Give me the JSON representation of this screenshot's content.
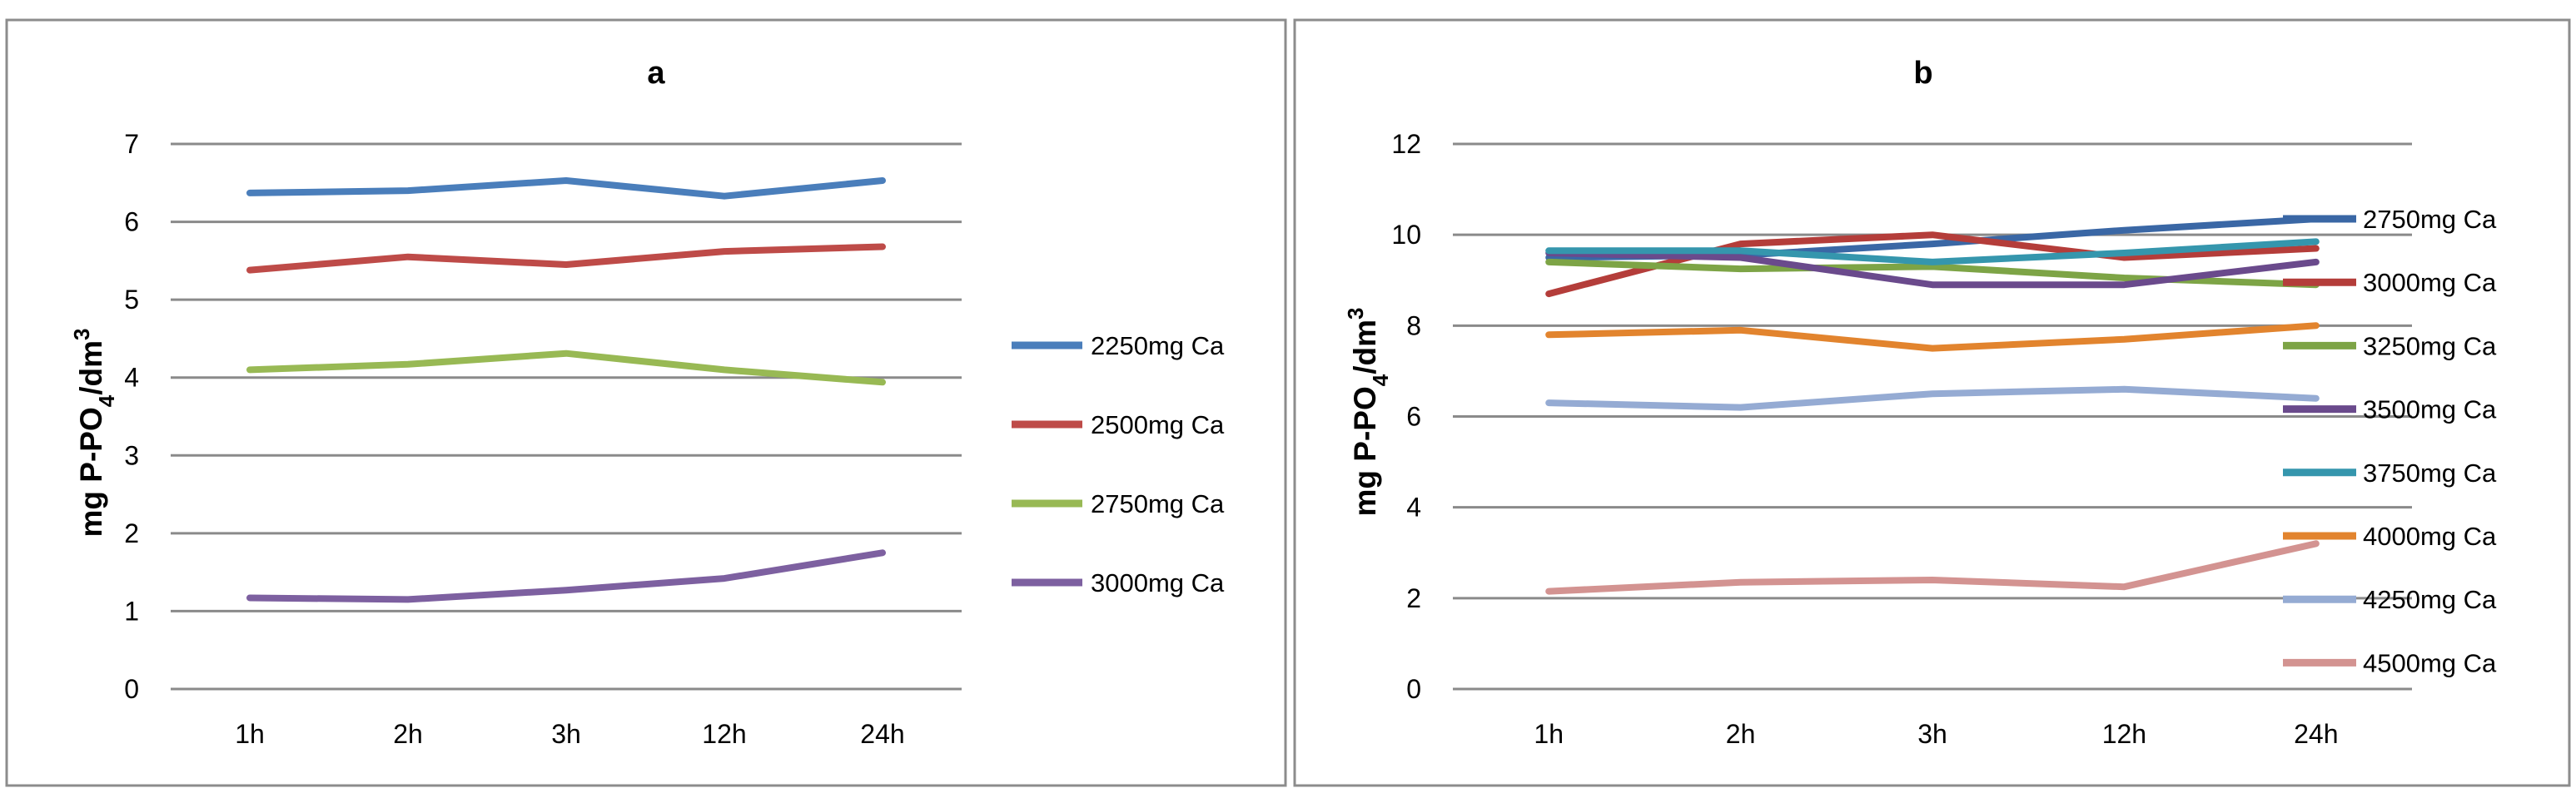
{
  "chart_data": [
    {
      "type": "line",
      "title": "a",
      "xlabel": "",
      "ylabel": "mg P-PO4/dm3",
      "ylabel_parts": {
        "main": "mg P-PO",
        "sub": "4",
        "unit": "/dm",
        "sup": "3"
      },
      "categories": [
        "1h",
        "2h",
        "3h",
        "12h",
        "24h"
      ],
      "ylim": [
        0,
        7
      ],
      "yticks": [
        "0",
        "1",
        "2",
        "3",
        "4",
        "5",
        "6",
        "7"
      ],
      "grid": true,
      "legend_position": "right",
      "series": [
        {
          "name": "2250mg Ca",
          "color": "#4a7ebb",
          "values": [
            6.37,
            6.4,
            6.53,
            6.33,
            6.53
          ]
        },
        {
          "name": "2500mg Ca",
          "color": "#be4b48",
          "values": [
            5.38,
            5.55,
            5.45,
            5.62,
            5.68
          ]
        },
        {
          "name": "2750mg Ca",
          "color": "#98b954",
          "values": [
            4.1,
            4.17,
            4.31,
            4.1,
            3.94
          ]
        },
        {
          "name": "3000mg Ca",
          "color": "#7d60a0",
          "values": [
            1.17,
            1.15,
            1.27,
            1.42,
            1.75
          ]
        }
      ]
    },
    {
      "type": "line",
      "title": "b",
      "xlabel": "",
      "ylabel": "mg P-PO4/dm3",
      "ylabel_parts": {
        "main": "mg P-PO",
        "sub": "4",
        "unit": "/dm",
        "sup": "3"
      },
      "categories": [
        "1h",
        "2h",
        "3h",
        "12h",
        "24h"
      ],
      "ylim": [
        0,
        12
      ],
      "yticks": [
        "0",
        "2",
        "4",
        "6",
        "8",
        "10",
        "12"
      ],
      "grid": true,
      "legend_position": "right",
      "series": [
        {
          "name": "2750mg Ca",
          "color": "#3a67a5",
          "values": [
            9.5,
            9.55,
            9.8,
            10.1,
            10.35
          ]
        },
        {
          "name": "3000mg Ca",
          "color": "#b43d3a",
          "values": [
            8.7,
            9.8,
            10.0,
            9.5,
            9.7
          ]
        },
        {
          "name": "3250mg Ca",
          "color": "#7da446",
          "values": [
            9.4,
            9.25,
            9.3,
            9.05,
            8.9
          ]
        },
        {
          "name": "3500mg Ca",
          "color": "#6a4a8c",
          "values": [
            9.6,
            9.5,
            8.9,
            8.9,
            9.4
          ]
        },
        {
          "name": "3750mg Ca",
          "color": "#3596ad",
          "values": [
            9.65,
            9.65,
            9.4,
            9.6,
            9.85
          ]
        },
        {
          "name": "4000mg Ca",
          "color": "#e2842e",
          "values": [
            7.8,
            7.9,
            7.5,
            7.7,
            8.0
          ]
        },
        {
          "name": "4250mg Ca",
          "color": "#95abd3",
          "values": [
            6.3,
            6.2,
            6.5,
            6.6,
            6.4
          ]
        },
        {
          "name": "4500mg Ca",
          "color": "#d39391",
          "values": [
            2.15,
            2.35,
            2.4,
            2.25,
            3.2
          ]
        }
      ]
    }
  ]
}
